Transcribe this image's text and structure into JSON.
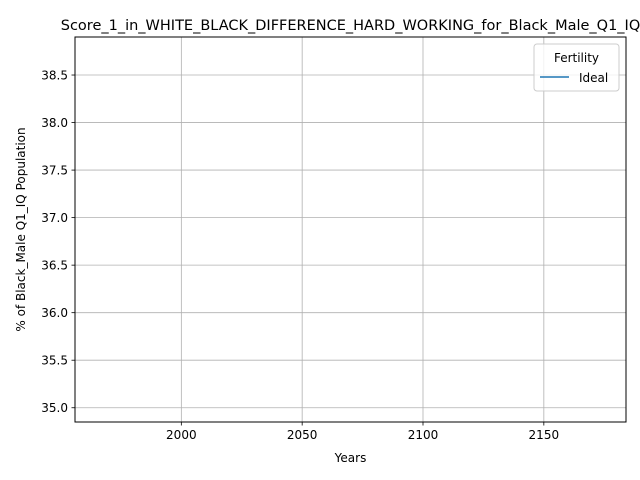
{
  "chart_data": {
    "type": "line",
    "title": "Score_1_in_WHITE_BLACK_DIFFERENCE_HARD_WORKING_for_Black_Male_Q1_IQ",
    "xlabel": "Years",
    "ylabel": "% of Black_Male Q1_IQ Population",
    "xlim": [
      1956,
      2184
    ],
    "ylim": [
      34.85,
      38.9
    ],
    "xticks": [
      2000,
      2050,
      2100,
      2150
    ],
    "yticks": [
      35.0,
      35.5,
      36.0,
      36.5,
      37.0,
      37.5,
      38.0,
      38.5
    ],
    "ytick_labels": [
      "35.0",
      "35.5",
      "36.0",
      "36.5",
      "37.0",
      "37.5",
      "38.0",
      "38.5"
    ],
    "grid": true,
    "legend": {
      "title": "Fertility",
      "placement": "top-right"
    },
    "series": [
      {
        "name": "Ideal",
        "color": "#1f77b4",
        "x": [],
        "y": []
      }
    ]
  }
}
